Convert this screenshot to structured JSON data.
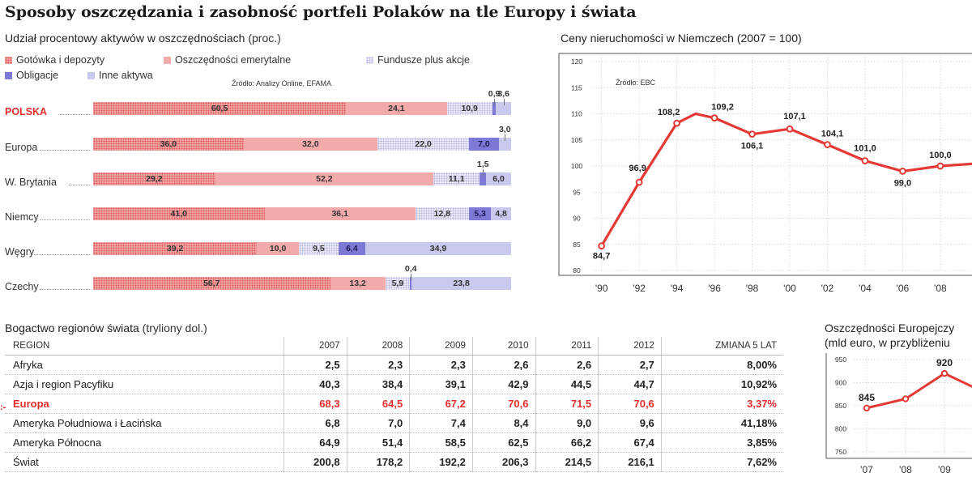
{
  "title": "Sposoby oszczędzania i zasobność portfeli Polaków na tle Europy i świata",
  "colors": {
    "accent": "#e52d2d",
    "line": "#e53935",
    "cash": "#e05a5a",
    "pension": "#f2aaaa",
    "funds": "#e9e9f7",
    "bonds": "#7d7ad6",
    "other": "#c9c9ee"
  },
  "bar_chart": {
    "title": "Udział procentowy aktywów w oszczędnościach",
    "unit": "(proc.)",
    "source": "Źródło: Analizy Online, EFAMA",
    "legend": [
      "Gotówka i depozyty",
      "Oszczędności emerytalne",
      "Fundusze plus akcje",
      "Obligacje",
      "Inne aktywa"
    ]
  },
  "line_chart_title": "Ceny nieruchomości w Niemczech (2007 = 100)",
  "line_chart_source": "Źródło: EBC",
  "small_chart_title": "Oszczędności Europejczy",
  "small_chart_subtitle": "(mld euro, w przybliżeniu",
  "table": {
    "title": "Bogactwo regionów świata",
    "unit": "(tryliony dol.)",
    "highlight_marker": ":-",
    "headers": [
      "REGION",
      "2007",
      "2008",
      "2009",
      "2010",
      "2011",
      "2012",
      "ZMIANA 5 LAT"
    ],
    "rows": [
      {
        "region": "Afryka",
        "values": [
          "2,5",
          "2,3",
          "2,3",
          "2,6",
          "2,6",
          "2,7"
        ],
        "change": "8,00%"
      },
      {
        "region": "Azja i region Pacyfiku",
        "values": [
          "40,3",
          "38,4",
          "39,1",
          "42,9",
          "44,5",
          "44,7"
        ],
        "change": "10,92%"
      },
      {
        "region": "Europa",
        "values": [
          "68,3",
          "64,5",
          "67,2",
          "70,6",
          "71,5",
          "70,6"
        ],
        "change": "3,37%"
      },
      {
        "region": "Ameryka Południowa i Łacińska",
        "values": [
          "6,8",
          "7,0",
          "7,4",
          "8,4",
          "9,0",
          "9,6"
        ],
        "change": "41,18%"
      },
      {
        "region": "Ameryka Północna",
        "values": [
          "64,9",
          "51,4",
          "58,5",
          "62,5",
          "66,2",
          "67,4"
        ],
        "change": "3,85%"
      },
      {
        "region": "Świat",
        "values": [
          "200,8",
          "178,2",
          "192,2",
          "206,3",
          "214,5",
          "216,1"
        ],
        "change": "7,62%"
      }
    ]
  },
  "chart_data": [
    {
      "type": "bar",
      "stacked": true,
      "orientation": "horizontal",
      "categories": [
        "POLSKA",
        "Europa",
        "W. Brytania",
        "Niemcy",
        "Węgry",
        "Czechy"
      ],
      "highlight": "POLSKA",
      "series": [
        {
          "name": "Gotówka i depozyty",
          "values": [
            60.5,
            36.0,
            29.2,
            41.0,
            39.2,
            56.7
          ],
          "labels": [
            "60,5",
            "36,0",
            "29,2",
            "41,0",
            "39,2",
            "56,7"
          ]
        },
        {
          "name": "Oszczędności emerytalne",
          "values": [
            24.1,
            32.0,
            52.2,
            36.1,
            10.0,
            13.2
          ],
          "labels": [
            "24,1",
            "32,0",
            "52,2",
            "36,1",
            "10,0",
            "13,2"
          ]
        },
        {
          "name": "Fundusze plus akcje",
          "values": [
            10.9,
            22.0,
            11.1,
            12.8,
            9.5,
            5.9
          ],
          "labels": [
            "10,9",
            "22,0",
            "11,1",
            "12,8",
            "9,5",
            "5,9"
          ]
        },
        {
          "name": "Obligacje",
          "values": [
            0.9,
            7.0,
            1.5,
            5.3,
            6.4,
            0.4
          ],
          "labels": [
            "0,9",
            "7,0",
            "1,5",
            "5,3",
            "6,4",
            "0,4"
          ]
        },
        {
          "name": "Inne aktywa",
          "values": [
            3.6,
            3.0,
            6.0,
            4.8,
            34.9,
            23.8
          ],
          "labels": [
            "3,6",
            "3,0",
            "6,0",
            "4,8",
            "34,9",
            "23,8"
          ]
        }
      ],
      "xlim": [
        0,
        100
      ]
    },
    {
      "type": "line",
      "x": [
        1990,
        1992,
        1994,
        1995,
        1996,
        1998,
        2000,
        2002,
        2004,
        2006,
        2008,
        2010
      ],
      "y": [
        84.7,
        96.9,
        108.2,
        110.0,
        109.2,
        106.1,
        107.1,
        104.1,
        101.0,
        99.0,
        100.0,
        100.5
      ],
      "point_labels": [
        {
          "x": 1990,
          "y": 84.7,
          "text": "84,7"
        },
        {
          "x": 1992,
          "y": 96.9,
          "text": "96,9"
        },
        {
          "x": 1994,
          "y": 108.2,
          "text": "108,2"
        },
        {
          "x": 1996,
          "y": 109.2,
          "text": "109,2"
        },
        {
          "x": 1998,
          "y": 106.1,
          "text": "106,1"
        },
        {
          "x": 2000,
          "y": 107.1,
          "text": "107,1"
        },
        {
          "x": 2002,
          "y": 104.1,
          "text": "104,1"
        },
        {
          "x": 2004,
          "y": 101.0,
          "text": "101,0"
        },
        {
          "x": 2006,
          "y": 99.0,
          "text": "99,0"
        },
        {
          "x": 2008,
          "y": 100.0,
          "text": "100,0"
        }
      ],
      "xticks": [
        "'90",
        "'92",
        "'94",
        "'96",
        "'98",
        "'00",
        "'02",
        "'04",
        "'06",
        "'08"
      ],
      "yticks": [
        80,
        85,
        90,
        95,
        100,
        105,
        110,
        115,
        120
      ],
      "ylim": [
        80,
        120
      ],
      "grid": true
    },
    {
      "type": "line",
      "x": [
        2007,
        2008,
        2009,
        2010
      ],
      "y": [
        845,
        865,
        920,
        880
      ],
      "point_labels": [
        {
          "x": 2007,
          "y": 845,
          "text": "845"
        },
        {
          "x": 2009,
          "y": 920,
          "text": "920"
        }
      ],
      "xticks": [
        "'07",
        "'08",
        "'09"
      ],
      "yticks": [
        750,
        800,
        850,
        900,
        950
      ],
      "ylim": [
        750,
        950
      ],
      "grid": true
    }
  ]
}
